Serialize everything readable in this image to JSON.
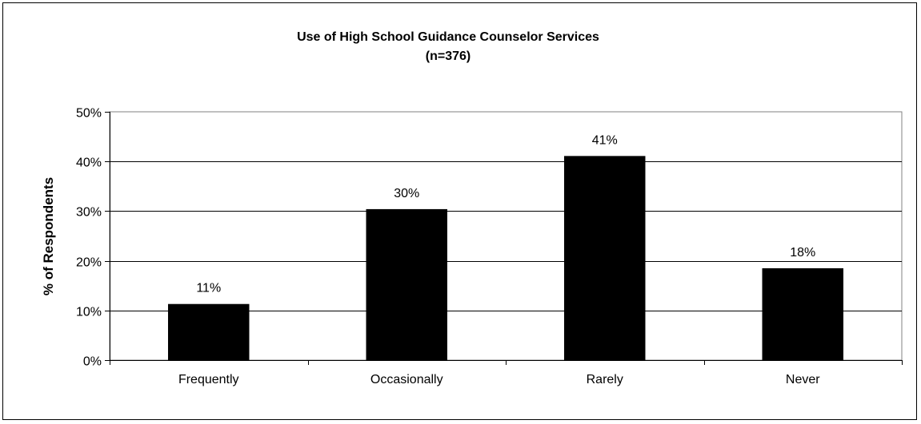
{
  "chart_data": {
    "type": "bar",
    "title": "Use of High School Guidance Counselor Services",
    "subtitle": "(n=376)",
    "xlabel": "",
    "ylabel": "% of Respondents",
    "categories": [
      "Frequently",
      "Occasionally",
      "Rarely",
      "Never"
    ],
    "values": [
      11.3,
      30.4,
      41.1,
      18.5
    ],
    "data_labels": [
      "11%",
      "30%",
      "41%",
      "18%"
    ],
    "ylim": [
      0,
      50
    ],
    "yticks": [
      0,
      10,
      20,
      30,
      40,
      50
    ],
    "ytick_labels": [
      "0%",
      "10%",
      "20%",
      "30%",
      "40%",
      "50%"
    ],
    "grid": true,
    "legend": "none",
    "bar_color": "#000000",
    "plot_border_color": "#808080"
  }
}
